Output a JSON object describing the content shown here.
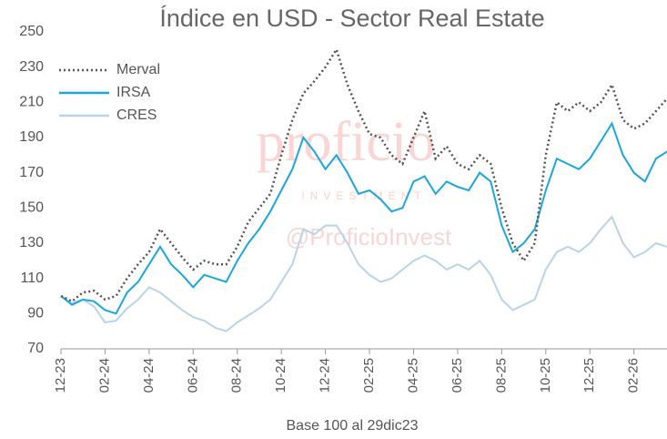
{
  "chart_data": {
    "type": "line",
    "title": "Índice en USD - Sector Real Estate",
    "x_label": "Base 100 al 29dic23",
    "watermark": [
      "proficio",
      "INVESTMENT",
      "@ProficioInvest"
    ],
    "categories": [
      "12-23",
      null,
      null,
      null,
      "02-24",
      null,
      null,
      null,
      "04-24",
      null,
      null,
      null,
      "06-24",
      null,
      null,
      null,
      "08-24",
      null,
      null,
      null,
      "10-24",
      null,
      null,
      null,
      "12-24",
      null,
      null,
      null,
      "02-25",
      null,
      null,
      null,
      "04-25",
      null,
      null,
      null,
      "06-25",
      null,
      null,
      null,
      "08-25",
      null,
      null,
      null,
      "10-25",
      null,
      null,
      null,
      "12-25",
      null,
      null,
      null,
      "02-26",
      null,
      null,
      null
    ],
    "series": [
      {
        "name": "Merval",
        "color": "#555555",
        "dash": true,
        "values": [
          100,
          97,
          102,
          103,
          98,
          100,
          110,
          118,
          125,
          138,
          130,
          122,
          115,
          120,
          118,
          118,
          128,
          142,
          150,
          158,
          180,
          200,
          215,
          222,
          230,
          240,
          220,
          205,
          192,
          190,
          180,
          175,
          190,
          205,
          178,
          185,
          175,
          172,
          180,
          175,
          150,
          130,
          120,
          130,
          180,
          210,
          205,
          210,
          205,
          210,
          220,
          200,
          195,
          198,
          205,
          212
        ]
      },
      {
        "name": "IRSA",
        "color": "#1aa7e0",
        "dash": false,
        "values": [
          100,
          95,
          98,
          97,
          92,
          90,
          102,
          108,
          118,
          128,
          118,
          112,
          105,
          112,
          110,
          108,
          120,
          130,
          138,
          148,
          160,
          172,
          190,
          182,
          172,
          180,
          170,
          158,
          160,
          155,
          148,
          150,
          165,
          168,
          158,
          165,
          162,
          160,
          170,
          165,
          140,
          125,
          130,
          138,
          160,
          178,
          175,
          172,
          178,
          188,
          198,
          180,
          170,
          165,
          178,
          182
        ]
      },
      {
        "name": "CRES",
        "color": "#b8d4ea",
        "dash": false,
        "values": [
          100,
          96,
          98,
          94,
          85,
          86,
          93,
          98,
          105,
          102,
          97,
          92,
          88,
          86,
          82,
          80,
          85,
          89,
          93,
          98,
          108,
          118,
          138,
          135,
          140,
          140,
          130,
          118,
          112,
          108,
          110,
          115,
          120,
          123,
          120,
          115,
          118,
          115,
          120,
          112,
          98,
          92,
          95,
          98,
          115,
          125,
          128,
          125,
          130,
          138,
          145,
          130,
          122,
          125,
          130,
          128
        ]
      }
    ],
    "ylim": [
      70,
      250
    ],
    "yticks": [
      70,
      90,
      110,
      130,
      150,
      170,
      190,
      210,
      230,
      250
    ],
    "grid": false,
    "legend": "upper left"
  }
}
